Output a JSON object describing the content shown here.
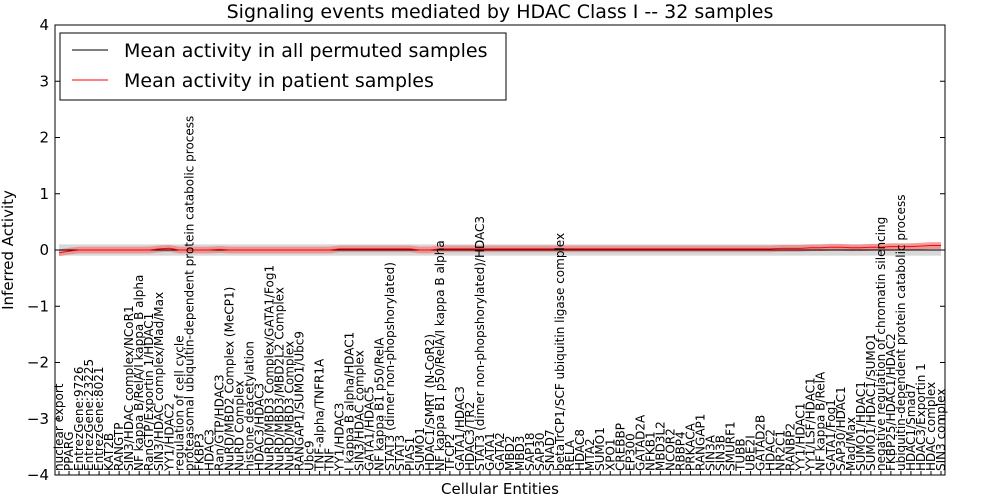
{
  "chart_data": {
    "type": "line",
    "title": "Signaling events mediated by HDAC Class I -- 32 samples",
    "xlabel": "Cellular Entities",
    "ylabel": "Inferred Activity",
    "ylim": [
      -4,
      4
    ],
    "yticks": [
      -4,
      -3,
      -2,
      -1,
      0,
      1,
      2,
      3,
      4
    ],
    "grid": false,
    "legend_position": "top-left",
    "legend": [
      {
        "label": "Mean activity in all permuted samples",
        "color": "#000000"
      },
      {
        "label": "Mean activity in patient samples",
        "color": "#ff0000"
      }
    ],
    "colors": {
      "patient": "#ff0000",
      "patient_band": "#f08080",
      "permuted_band": "#c8c8c8",
      "permuted": "#000000"
    },
    "categories": [
      "nuclear export",
      "PPARG",
      "EntrezGene:9726",
      "EntrezGene:23225",
      "EntrezGene:8021",
      "KAT2B",
      "RANGTP",
      "SIN3/HDAC complex/NCoR1",
      "NF kappa B/RelA/I kappa B alpha",
      "RanGTP/Exportin 1/HDAC1",
      "SIN3/HDAC complex/Mad/Max",
      "YY1/HDAC2",
      "regulation of cell cycle",
      "proteasomal ubiquitin-dependent protein catabolic process",
      "FKBP3",
      "HDAC3",
      "Ran/GTP/HDAC3",
      "NuRD/MBD2 Complex (MeCP1)",
      "NuRD Complex",
      "histone deacetylation",
      "HDAC3/HDAC3",
      "NuRD/MBD3 Complex/GATA1/Fog1",
      "NuRD/MBD3/MBD2L2 Complex",
      "NuRD/MBD3 Complex",
      "RANGAP1/SUMO1/Ubc9",
      "Ubc9",
      "TNF-alpha/TNFR1A",
      "TNF",
      "YY1/HDAC3",
      "I kappa B alpha/HDAC1",
      "SIN3/HDAC complex",
      "GATA1/HDAC5",
      "NF kappa B1 p50/RelA",
      "STAT3 (dimer non-phopshorylated)",
      "STAT3",
      "PIAS1",
      "SUMO1",
      "HDAC1/SMRT (N-CoR2)",
      "NF kappa B1 p50/RelA/I kappa B alpha",
      "TFCP2",
      "GATA1/HDAC3",
      "HDAC3/TR2",
      "STAT3 (dimer non-phopshorylated)/HDAC3",
      "GATA1",
      "GATA2",
      "MBD2",
      "MBD3",
      "SAP18",
      "SAP30",
      "SNAD7",
      "betaTrCP1/SCF ubiquitin ligase complex",
      "RELA",
      "HDAC8",
      "MTA2",
      "SUMO1",
      "XPO1",
      "CREBBP",
      "EP300",
      "GATAD2A",
      "NFKB1",
      "MBD3L2",
      "NCOR2",
      "RBBP4",
      "PRKACA",
      "RANGAP1",
      "SIN3A",
      "SIN3B",
      "SMURF1",
      "TUBB",
      "UBE2I",
      "GATAD2B",
      "HDAC2",
      "NR2C1",
      "RANBP2",
      "YY1/HDAC1",
      "YY1/LSF/HDAC1",
      "NF kappa B/RelA",
      "GATA1/Fog1",
      "SAP30/HDAC1",
      "Mad/Max",
      "SUMO1/HDAC1",
      "SUMO1/HDAC1/SUMO1",
      "negative regulation of chromatin silencing",
      "FKBP25/HDAC1/HDAC2",
      "ubiquitin-dependent protein catabolic process",
      "HDAC1/Smad7",
      "HDAC3/Exportin 1",
      "HDAC complex",
      "SIN3 complex"
    ],
    "series": [
      {
        "name": "Mean activity in patient samples",
        "values": [
          -0.05,
          -0.02,
          0.0,
          0.0,
          0.0,
          0.0,
          0.0,
          0.0,
          0.0,
          0.0,
          0.02,
          0.03,
          0.0,
          0.0,
          0.0,
          0.0,
          0.01,
          0.0,
          0.0,
          0.0,
          0.0,
          0.0,
          0.0,
          0.0,
          0.0,
          0.0,
          0.0,
          0.0,
          0.02,
          0.02,
          0.02,
          0.02,
          0.02,
          0.02,
          0.02,
          0.02,
          0.0,
          0.0,
          0.02,
          0.02,
          0.02,
          0.02,
          0.02,
          0.02,
          0.02,
          0.02,
          0.02,
          0.02,
          0.02,
          0.02,
          0.02,
          0.02,
          0.02,
          0.02,
          0.02,
          0.02,
          0.02,
          0.02,
          0.02,
          0.02,
          0.02,
          0.02,
          0.02,
          0.02,
          0.02,
          0.02,
          0.02,
          0.02,
          0.02,
          0.02,
          0.02,
          0.02,
          0.03,
          0.03,
          0.03,
          0.04,
          0.04,
          0.05,
          0.05,
          0.04,
          0.04,
          0.05,
          0.05,
          0.06,
          0.06,
          0.06,
          0.07,
          0.08,
          0.08
        ]
      },
      {
        "name": "Mean activity in all permuted samples",
        "values": [
          0.0,
          0.0,
          0.0,
          0.0,
          0.0,
          0.0,
          0.0,
          0.0,
          0.0,
          0.0,
          0.0,
          0.0,
          0.0,
          0.0,
          0.0,
          0.0,
          0.0,
          0.0,
          0.0,
          0.0,
          0.0,
          0.0,
          0.0,
          0.0,
          0.0,
          0.0,
          0.0,
          0.0,
          0.0,
          0.0,
          0.0,
          0.0,
          0.0,
          0.0,
          0.0,
          0.0,
          0.0,
          0.0,
          0.0,
          0.0,
          0.0,
          0.0,
          0.0,
          0.0,
          0.0,
          0.0,
          0.0,
          0.0,
          0.0,
          0.0,
          0.0,
          0.0,
          0.0,
          0.0,
          0.0,
          0.0,
          0.0,
          0.0,
          0.0,
          0.0,
          0.0,
          0.0,
          0.0,
          0.0,
          0.0,
          0.0,
          0.0,
          0.0,
          0.0,
          0.0,
          0.0,
          0.0,
          0.0,
          0.0,
          0.0,
          0.0,
          0.0,
          0.0,
          0.0,
          0.0,
          0.0,
          0.0,
          0.0,
          0.0,
          0.0,
          0.0,
          0.0,
          0.0,
          0.0
        ]
      }
    ],
    "patient_band_halfwidth": 0.06,
    "permuted_band_halfwidth": 0.1
  }
}
